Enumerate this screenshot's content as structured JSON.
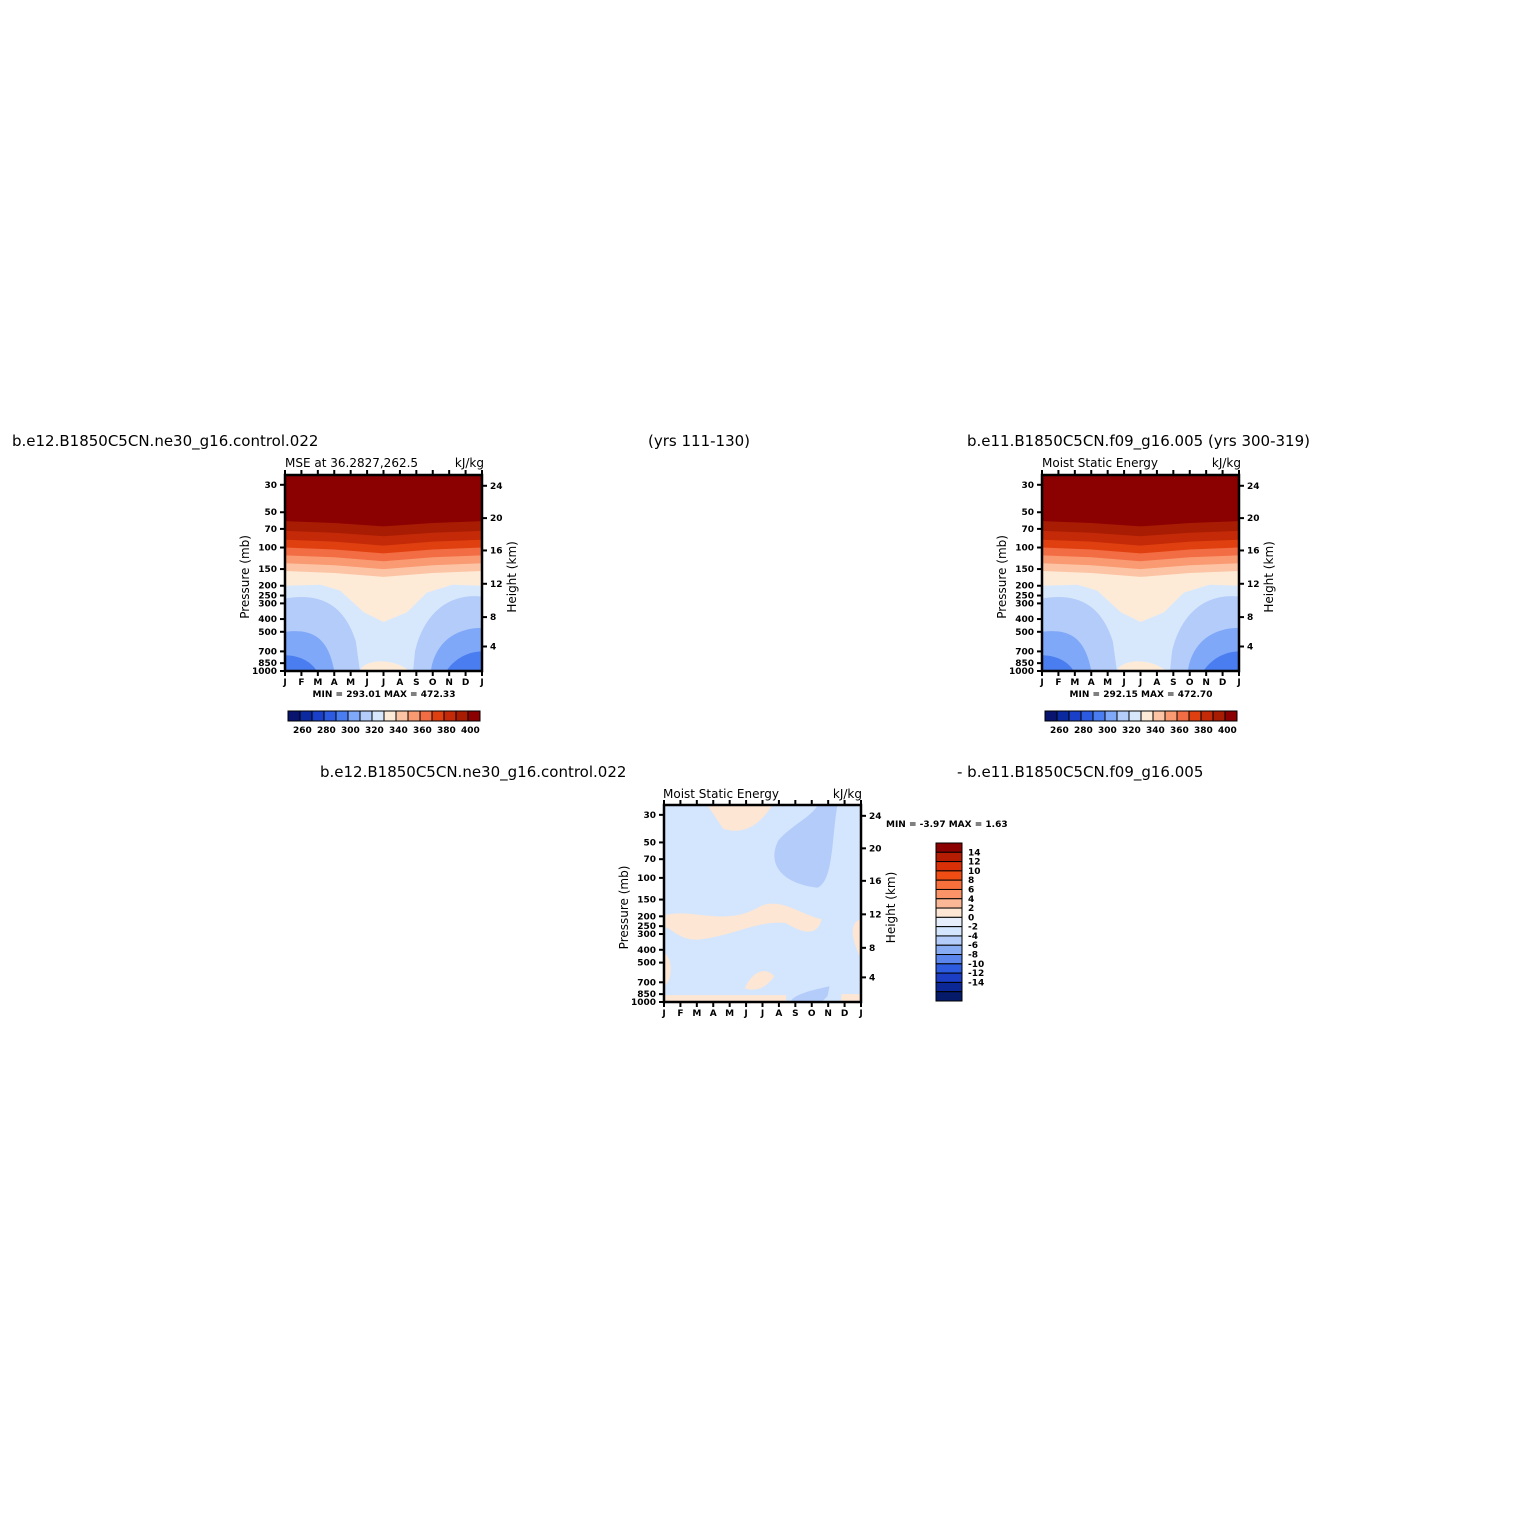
{
  "header": {
    "left_title": "b.e12.B1850C5CN.ne30_g16.control.022",
    "center_title": "(yrs 111-130)",
    "right_title": "b.e11.B1850C5CN.f09_g16.005 (yrs 300-319)",
    "diff_left_title": "b.e12.B1850C5CN.ne30_g16.control.022",
    "diff_right_title": "- b.e11.B1850C5CN.f09_g16.005"
  },
  "months": [
    "J",
    "F",
    "M",
    "A",
    "M",
    "J",
    "J",
    "A",
    "S",
    "O",
    "N",
    "D",
    "J"
  ],
  "pressure_ticks": [
    "30",
    "50",
    "70",
    "100",
    "150",
    "200",
    "250",
    "300",
    "400",
    "500",
    "700",
    "850",
    "1000"
  ],
  "height_ticks": [
    "24",
    "20",
    "16",
    "12",
    "8",
    "4"
  ],
  "axis_labels": {
    "left": "Pressure (mb)",
    "right": "Height (km)"
  },
  "colors": {
    "mse_scale": [
      "#08146e",
      "#0c2aa0",
      "#1a3fc8",
      "#2c5ae0",
      "#4a7ef0",
      "#80a8f8",
      "#b4ccfa",
      "#d8e8fc",
      "#fdebd8",
      "#fcc4a4",
      "#f99a72",
      "#f26d44",
      "#e04010",
      "#c42a08",
      "#a81c04",
      "#8b0000"
    ],
    "diff_scale": [
      "#8b0000",
      "#b51c04",
      "#d93008",
      "#ef4d14",
      "#f7703c",
      "#fa9468",
      "#fbb896",
      "#fde6d4",
      "#e6eefc",
      "#d4e6fd",
      "#b4ccfa",
      "#88acf4",
      "#5a86ee",
      "#2e5ce0",
      "#1c3ec4",
      "#0c2796",
      "#061a6a"
    ]
  },
  "chart_data": [
    {
      "type": "contour",
      "title": "MSE at 36.2827,262.5",
      "units": "kJ/kg",
      "stats": "MIN = 293.01  MAX = 472.33",
      "x": [
        "J",
        "F",
        "M",
        "A",
        "M",
        "J",
        "J",
        "A",
        "S",
        "O",
        "N",
        "D",
        "J"
      ],
      "y_pressure_mb": [
        "30",
        "50",
        "70",
        "100",
        "150",
        "200",
        "250",
        "300",
        "400",
        "500",
        "700",
        "850",
        "1000"
      ],
      "y2_height_km": [
        "24",
        "20",
        "16",
        "12",
        "8",
        "4"
      ],
      "colorbar_labels": [
        "260",
        "280",
        "300",
        "320",
        "340",
        "360",
        "380",
        "400"
      ],
      "min": 293.01,
      "max": 472.33
    },
    {
      "type": "contour",
      "title": "Moist Static Energy",
      "units": "kJ/kg",
      "stats": "MIN = 292.15  MAX = 472.70",
      "x": [
        "J",
        "F",
        "M",
        "A",
        "M",
        "J",
        "J",
        "A",
        "S",
        "O",
        "N",
        "D",
        "J"
      ],
      "y_pressure_mb": [
        "30",
        "50",
        "70",
        "100",
        "150",
        "200",
        "250",
        "300",
        "400",
        "500",
        "700",
        "850",
        "1000"
      ],
      "y2_height_km": [
        "24",
        "20",
        "16",
        "12",
        "8",
        "4"
      ],
      "colorbar_labels": [
        "260",
        "280",
        "300",
        "320",
        "340",
        "360",
        "380",
        "400"
      ],
      "min": 292.15,
      "max": 472.7
    },
    {
      "type": "contour",
      "title": "Moist Static Energy",
      "units": "kJ/kg",
      "stats": "MIN =  -3.97 MAX =   1.63",
      "x": [
        "J",
        "F",
        "M",
        "A",
        "M",
        "J",
        "J",
        "A",
        "S",
        "O",
        "N",
        "D",
        "J"
      ],
      "y_pressure_mb": [
        "30",
        "50",
        "70",
        "100",
        "150",
        "200",
        "250",
        "300",
        "400",
        "500",
        "700",
        "850",
        "1000"
      ],
      "y2_height_km": [
        "24",
        "20",
        "16",
        "12",
        "8",
        "4"
      ],
      "colorbar_labels": [
        "14",
        "12",
        "10",
        "8",
        "6",
        "4",
        "2",
        "0",
        "-2",
        "-4",
        "-6",
        "-8",
        "-10",
        "-12",
        "-14"
      ],
      "min": -3.97,
      "max": 1.63
    }
  ]
}
